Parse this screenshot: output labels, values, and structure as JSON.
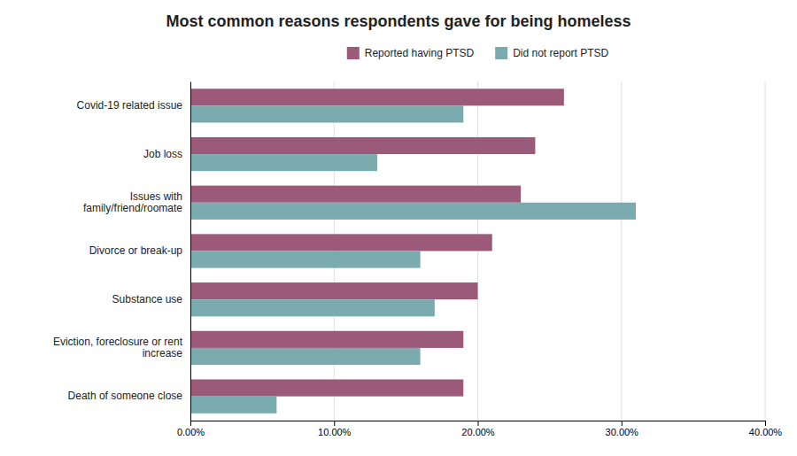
{
  "chart_data": {
    "type": "bar",
    "orientation": "horizontal",
    "title": "Most common reasons respondents gave for being homeless",
    "categories": [
      "Death of someone close",
      "Eviction, foreclosure or rent\nincrease",
      "Substance use",
      "Divorce or break-up",
      "Issues with\nfamily/friend/roomate",
      "Job loss",
      "Covid-19 related issue"
    ],
    "series": [
      {
        "name": "Reported having PTSD",
        "color": "#9b5a7a",
        "values": [
          0.19,
          0.19,
          0.2,
          0.21,
          0.23,
          0.24,
          0.26
        ]
      },
      {
        "name": "Did not report PTSD",
        "color": "#7aabaf",
        "values": [
          0.06,
          0.16,
          0.17,
          0.16,
          0.31,
          0.13,
          0.19
        ]
      }
    ],
    "xlim": [
      0,
      0.4
    ],
    "xticks": [
      {
        "value": 0.0,
        "label": "0.00%"
      },
      {
        "value": 0.1,
        "label": "10.00%"
      },
      {
        "value": 0.2,
        "label": "20.00%"
      },
      {
        "value": 0.3,
        "label": "30.00%"
      },
      {
        "value": 0.4,
        "label": "40.00%"
      }
    ],
    "grid": true,
    "legend": "top"
  }
}
